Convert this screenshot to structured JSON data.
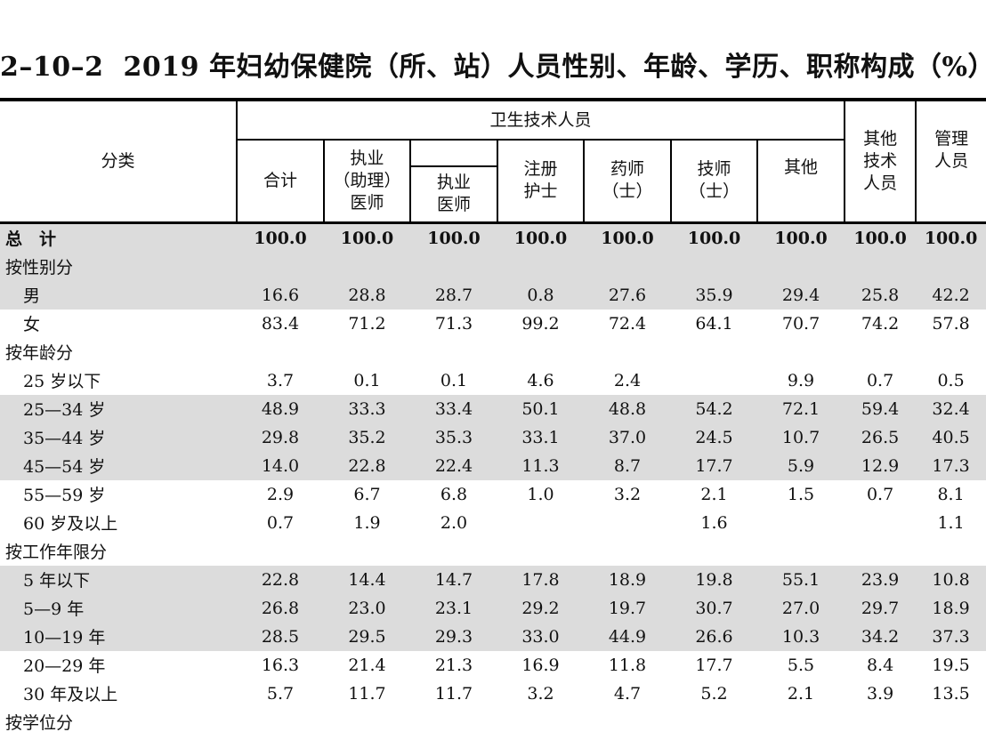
{
  "title": {
    "code": "2–10–2",
    "text": "2019 年妇幼保健院（所、站）人员性别、年龄、学历、职称构成（%）"
  },
  "header": {
    "category": "分类",
    "health_tech": "卫生技术人员",
    "total": "合计",
    "practicing_line1": "执业",
    "practicing_line2": "（助理）",
    "practicing_line3": "医师",
    "practicing_doc_line1": "执业",
    "practicing_doc_line2": "医师",
    "nurse_line1": "注册",
    "nurse_line2": "护士",
    "pharm_line1": "药师",
    "pharm_line2": "（士）",
    "tech_line1": "技师",
    "tech_line2": "（士）",
    "other": "其他",
    "other_tech_line1": "其他",
    "other_tech_line2": "技术",
    "other_tech_line3": "人员",
    "mgmt_line1": "管理",
    "mgmt_line2": "人员"
  },
  "rows": [
    {
      "label": "总　计",
      "values": [
        "100.0",
        "100.0",
        "100.0",
        "100.0",
        "100.0",
        "100.0",
        "100.0",
        "100.0",
        "100.0"
      ]
    },
    {
      "label": "按性别分",
      "values": [
        "",
        "",
        "",
        "",
        "",
        "",
        "",
        "",
        ""
      ]
    },
    {
      "label": "男",
      "values": [
        "16.6",
        "28.8",
        "28.7",
        "0.8",
        "27.6",
        "35.9",
        "29.4",
        "25.8",
        "42.2"
      ]
    },
    {
      "label": "女",
      "values": [
        "83.4",
        "71.2",
        "71.3",
        "99.2",
        "72.4",
        "64.1",
        "70.7",
        "74.2",
        "57.8"
      ]
    },
    {
      "label": "按年龄分",
      "values": [
        "",
        "",
        "",
        "",
        "",
        "",
        "",
        "",
        ""
      ]
    },
    {
      "label": "25 岁以下",
      "values": [
        "3.7",
        "0.1",
        "0.1",
        "4.6",
        "2.4",
        "",
        "9.9",
        "0.7",
        "0.5"
      ]
    },
    {
      "label": "25—34 岁",
      "values": [
        "48.9",
        "33.3",
        "33.4",
        "50.1",
        "48.8",
        "54.2",
        "72.1",
        "59.4",
        "32.4"
      ]
    },
    {
      "label": "35—44 岁",
      "values": [
        "29.8",
        "35.2",
        "35.3",
        "33.1",
        "37.0",
        "24.5",
        "10.7",
        "26.5",
        "40.5"
      ]
    },
    {
      "label": "45—54 岁",
      "values": [
        "14.0",
        "22.8",
        "22.4",
        "11.3",
        "8.7",
        "17.7",
        "5.9",
        "12.9",
        "17.3"
      ]
    },
    {
      "label": "55—59 岁",
      "values": [
        "2.9",
        "6.7",
        "6.8",
        "1.0",
        "3.2",
        "2.1",
        "1.5",
        "0.7",
        "8.1"
      ]
    },
    {
      "label": "60 岁及以上",
      "values": [
        "0.7",
        "1.9",
        "2.0",
        "",
        "",
        "1.6",
        "",
        "",
        "1.1"
      ]
    },
    {
      "label": "按工作年限分",
      "values": [
        "",
        "",
        "",
        "",
        "",
        "",
        "",
        "",
        ""
      ]
    },
    {
      "label": "5 年以下",
      "values": [
        "22.8",
        "14.4",
        "14.7",
        "17.8",
        "18.9",
        "19.8",
        "55.1",
        "23.9",
        "10.8"
      ]
    },
    {
      "label": "5—9 年",
      "values": [
        "26.8",
        "23.0",
        "23.1",
        "29.2",
        "19.7",
        "30.7",
        "27.0",
        "29.7",
        "18.9"
      ]
    },
    {
      "label": "10—19 年",
      "values": [
        "28.5",
        "29.5",
        "29.3",
        "33.0",
        "44.9",
        "26.6",
        "10.3",
        "34.2",
        "37.3"
      ]
    },
    {
      "label": "20—29 年",
      "values": [
        "16.3",
        "21.4",
        "21.3",
        "16.9",
        "11.8",
        "17.7",
        "5.5",
        "8.4",
        "19.5"
      ]
    },
    {
      "label": "30 年及以上",
      "values": [
        "5.7",
        "11.7",
        "11.7",
        "3.2",
        "4.7",
        "5.2",
        "2.1",
        "3.9",
        "13.5"
      ]
    },
    {
      "label": "按学位分",
      "values": [
        "",
        "",
        "",
        "",
        "",
        "",
        "",
        "",
        ""
      ]
    }
  ]
}
